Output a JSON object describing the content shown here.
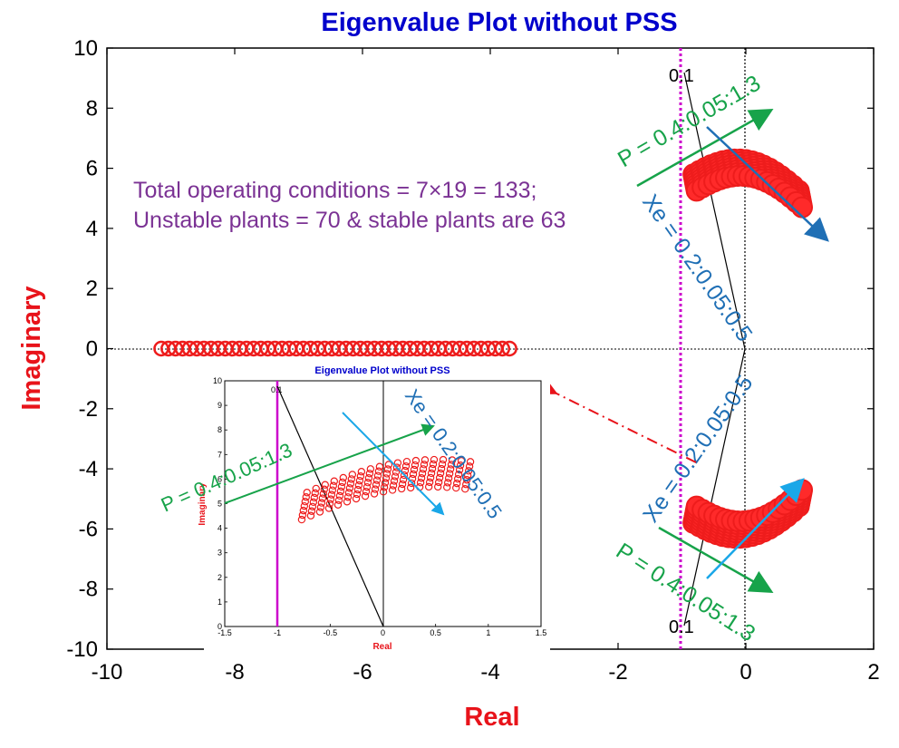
{
  "chart_data": [
    {
      "type": "scatter",
      "title": "Eigenvalue Plot without PSS",
      "xlabel": "Real",
      "ylabel": "Imaginary",
      "xlim": [
        -10,
        2
      ],
      "ylim": [
        -10,
        10
      ],
      "x_ticks": [
        "-10",
        "-8",
        "-6",
        "-4",
        "-2",
        "0",
        "2"
      ],
      "y_ticks": [
        "10",
        "8",
        "6",
        "4",
        "2",
        "0",
        "-2",
        "-4",
        "-6",
        "-8",
        "-10"
      ],
      "grid": false,
      "colors": {
        "title": "#0000cc",
        "axis_label": "#e8131a",
        "points": "#ee1c1c",
        "damping_line": "#cc00cc",
        "p_arrow": "#17a34a",
        "xe_arrow_dark": "#1f6fb5",
        "xe_arrow_light": "#1aa7e8",
        "note": "#7b3294",
        "link_arrow": "#e8131a"
      },
      "damping_label": "0.1",
      "damping_label_lower": "0.1",
      "annotations": {
        "note_line1": "Total operating conditions = 7×19 = 133;",
        "note_line2": "Unstable plants = 70 & stable plants are 63",
        "p_label_upper": "P = 0.4:0.05:1.3",
        "xe_label_upper": "Xe = 0.2:0.05:0.5",
        "p_label_lower": "P = 0.4:0.05:1.3",
        "xe_label_lower": "Xe = 0.2:0.05:0.5"
      },
      "series": [
        {
          "marker": "circle",
          "real_axis_points": {
            "x_from": -9.15,
            "x_to": -3.7,
            "y": 0
          },
          "upper_cluster": {
            "x_range": [
              -0.9,
              0.95
            ],
            "y_range": [
              4.3,
              7.2
            ]
          },
          "lower_cluster": {
            "x_range": [
              -0.9,
              0.95
            ],
            "y_range": [
              -7.2,
              -4.3
            ]
          }
        }
      ]
    },
    {
      "type": "scatter",
      "title": "Eigenvalue Plot without PSS",
      "xlabel": "Real",
      "ylabel": "Imaginary",
      "xlim": [
        -1.5,
        1.5
      ],
      "ylim": [
        0,
        10
      ],
      "x_ticks": [
        "-1.5",
        "-1",
        "-0.5",
        "0",
        "0.5",
        "1",
        "1.5"
      ],
      "y_ticks": [
        "10",
        "9",
        "8",
        "7",
        "6",
        "5",
        "4",
        "3",
        "2",
        "1",
        "0"
      ],
      "damping_label": "0.1",
      "annotations": {
        "p_label": "P = 0.4:0.05:1.3",
        "xe_label": "Xe = 0.2:0.05:0.5"
      },
      "series": [
        {
          "marker": "circle",
          "cluster": {
            "x_range": [
              -0.75,
              0.85
            ],
            "y_range": [
              3.7,
              7.3
            ]
          }
        }
      ]
    }
  ]
}
